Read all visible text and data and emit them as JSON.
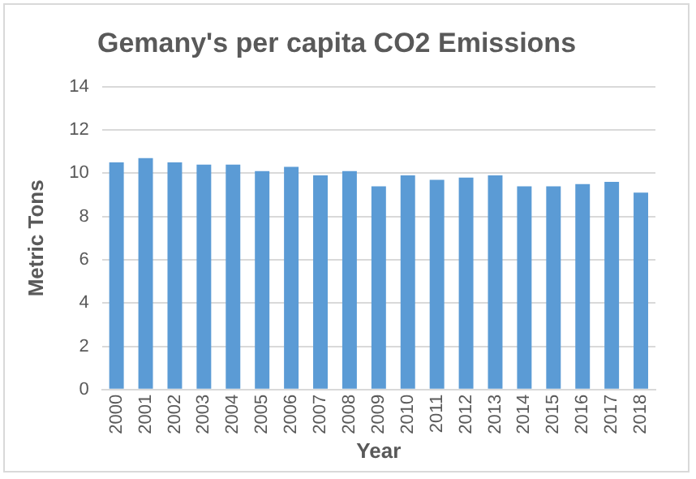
{
  "chart_data": {
    "type": "bar",
    "title": "Gemany's per capita CO2 Emissions",
    "xlabel": "Year",
    "ylabel": "Metric Tons",
    "categories": [
      "2000",
      "2001",
      "2002",
      "2003",
      "2004",
      "2005",
      "2006",
      "2007",
      "2008",
      "2009",
      "2010",
      "2011",
      "2012",
      "2013",
      "2014",
      "2015",
      "2016",
      "2017",
      "2018"
    ],
    "values": [
      10.5,
      10.7,
      10.5,
      10.4,
      10.4,
      10.1,
      10.3,
      9.9,
      10.1,
      9.4,
      9.9,
      9.7,
      9.8,
      9.9,
      9.4,
      9.4,
      9.5,
      9.6,
      9.1
    ],
    "color": "#5b9bd5",
    "ylim": [
      0,
      14
    ],
    "yticks": [
      0,
      2,
      4,
      6,
      8,
      10,
      12,
      14
    ],
    "grid": "y"
  }
}
